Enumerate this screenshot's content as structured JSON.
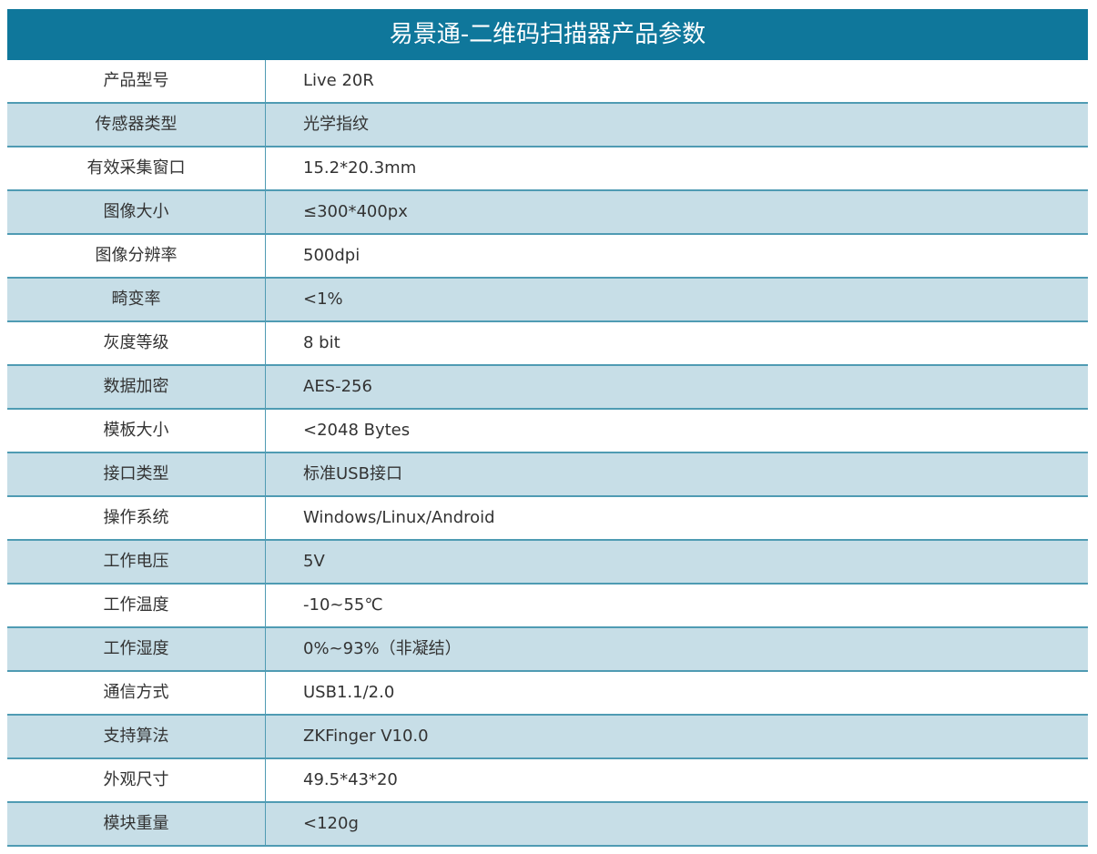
{
  "table": {
    "title": "易景通-二维码扫描器产品参数",
    "rows": [
      [
        "产品型号",
        "Live 20R"
      ],
      [
        "传感器类型",
        "光学指纹"
      ],
      [
        "有效采集窗口",
        "15.2*20.3mm"
      ],
      [
        "图像大小",
        "≤300*400px"
      ],
      [
        "图像分辨率",
        "500dpi"
      ],
      [
        "畸变率",
        "<1%"
      ],
      [
        "灰度等级",
        "8 bit"
      ],
      [
        "数据加密",
        "AES-256"
      ],
      [
        "模板大小",
        "<2048 Bytes"
      ],
      [
        "接口类型",
        "标准USB接口"
      ],
      [
        "操作系统",
        "Windows/Linux/Android"
      ],
      [
        "工作电压",
        "5V"
      ],
      [
        "工作温度",
        "-10~55℃"
      ],
      [
        "工作湿度",
        "0%~93%（非凝结）"
      ],
      [
        "通信方式",
        "USB1.1/2.0"
      ],
      [
        "支持算法",
        "ZKFinger V10.0"
      ],
      [
        "外观尺寸",
        "49.5*43*20"
      ],
      [
        "模块重量",
        "<120g"
      ]
    ]
  }
}
